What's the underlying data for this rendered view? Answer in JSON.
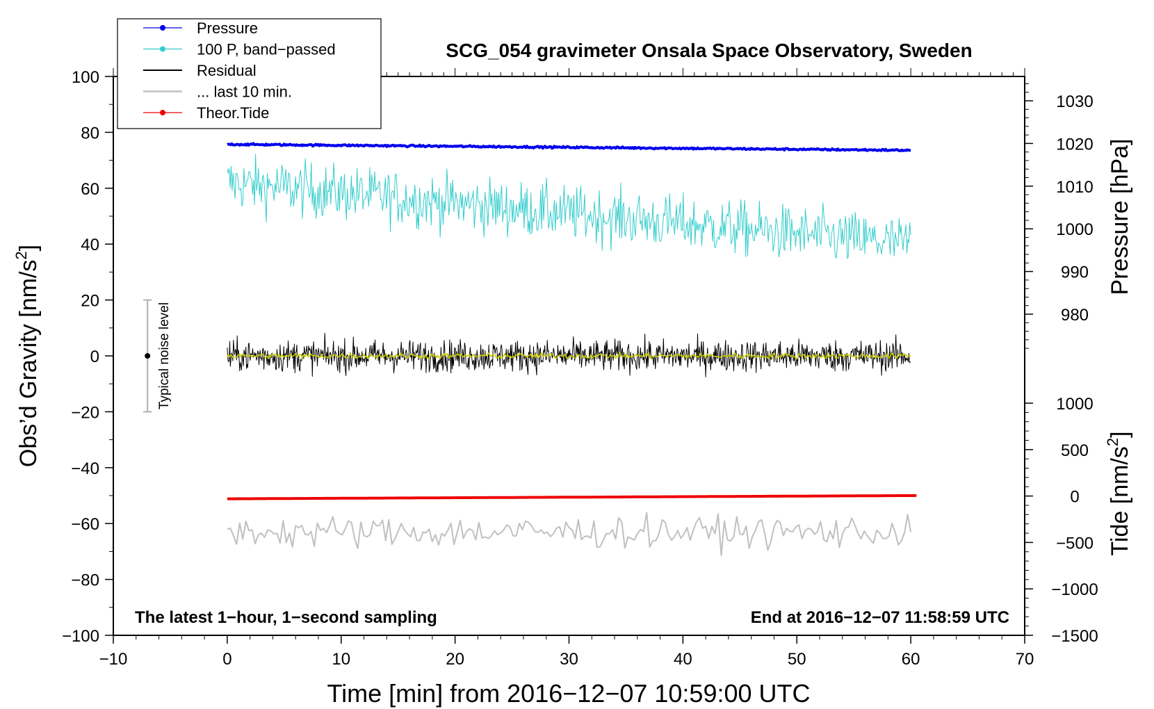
{
  "chart_data": {
    "type": "line",
    "title": "SCG_054 gravimeter Onsala Space Observatory, Sweden",
    "xlabel": "Time [min] from 2016−12−07 10:59:00 UTC",
    "ylabel_left_main": "Obs’d Gravity [nm/s",
    "ylabel_left_sup": "2",
    "ylabel_left_close": "]",
    "ylabel_right_pressure": "Pressure [hPa]",
    "ylabel_right_tide_main": "Tide [nm/s",
    "ylabel_right_tide_sup": "2",
    "ylabel_right_tide_close": "]",
    "xlim": [
      -10,
      70
    ],
    "ylim": [
      -100,
      100
    ],
    "x_ticks": [
      "−10",
      "0",
      "10",
      "20",
      "30",
      "40",
      "50",
      "60",
      "70"
    ],
    "y_ticks": [
      "−100",
      "−80",
      "−60",
      "−40",
      "−20",
      "0",
      "20",
      "40",
      "60",
      "80",
      "100"
    ],
    "pressure_axis": {
      "range": [
        970,
        1035
      ],
      "ticks": [
        "980",
        "990",
        "1000",
        "1010",
        "1020",
        "1030"
      ]
    },
    "tide_axis": {
      "range": [
        -1500,
        1000
      ],
      "ticks": [
        "−1500",
        "−1000",
        "−500",
        "0",
        "500",
        "1000"
      ]
    },
    "legend": {
      "placement": "top-left",
      "entries": [
        {
          "label": "Pressure",
          "color": "#0000ee",
          "marker": true
        },
        {
          "label": "100 P, band−passed",
          "color": "#33cccc",
          "marker": true
        },
        {
          "label": "Residual",
          "color": "#000000",
          "marker": false
        },
        {
          "label": "... last 10 min.",
          "color": "#c0c0c0",
          "marker": false
        },
        {
          "label": "Theor.Tide",
          "color": "#ee0000",
          "marker": true
        }
      ]
    },
    "series": [
      {
        "name": "Pressure",
        "axis": "pressure",
        "color": "#0000ee",
        "x": [
          0,
          60
        ],
        "values": [
          1019.8,
          1018.4
        ],
        "noise": 0.15
      },
      {
        "name": "100 P, band−passed",
        "axis": "left",
        "color": "#33cccc",
        "x": [
          0,
          60
        ],
        "values": [
          62,
          40
        ],
        "noise": 7
      },
      {
        "name": "Residual",
        "axis": "left",
        "color": "#000000",
        "x": [
          0,
          60
        ],
        "values": [
          0,
          0
        ],
        "noise": 4
      },
      {
        "name": "Residual smoothed",
        "axis": "left",
        "color": "#cccc00",
        "x": [
          0,
          60
        ],
        "values": [
          0,
          0
        ],
        "noise": 0.7
      },
      {
        "name": "... last 10 min.",
        "axis": "left",
        "color": "#c0c0c0",
        "x": [
          0,
          60
        ],
        "values": [
          -63,
          -63
        ],
        "noise": 4
      },
      {
        "name": "Theor.Tide",
        "axis": "tide",
        "color": "#ee0000",
        "x": [
          0,
          60.5
        ],
        "values": [
          -30,
          5
        ],
        "noise": 0
      }
    ],
    "noise_level": {
      "label": "Typical noise level",
      "x": -7,
      "center": 0,
      "range": [
        -20,
        20
      ]
    },
    "annotation_left": "The latest 1−hour, 1−second sampling",
    "annotation_right": "End at 2016−12−07 11:58:59 UTC"
  }
}
